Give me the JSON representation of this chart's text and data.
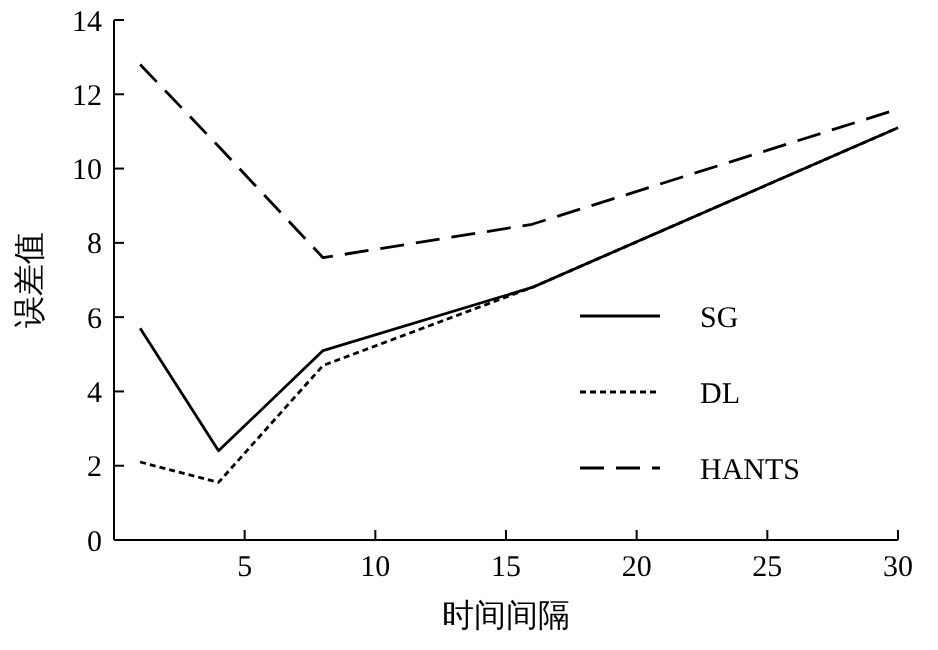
{
  "chart_data": {
    "type": "line",
    "xlabel": "时间间隔",
    "ylabel": "误差值",
    "x": [
      1,
      4,
      8,
      16,
      30
    ],
    "series": [
      {
        "name": "SG",
        "color": "#000000",
        "line_style": "solid",
        "values": [
          5.7,
          2.4,
          5.1,
          6.8,
          11.1
        ]
      },
      {
        "name": "DL",
        "color": "#000000",
        "line_style": "dotted",
        "values": [
          2.1,
          1.55,
          4.7,
          6.8,
          11.1
        ]
      },
      {
        "name": "HANTS",
        "color": "#000000",
        "line_style": "dashed",
        "values": [
          12.8,
          10.6,
          7.6,
          8.5,
          11.6
        ]
      }
    ],
    "xlim": [
      0,
      30
    ],
    "xticks": [
      5,
      10,
      15,
      20,
      25,
      30
    ],
    "ylim": [
      0,
      14
    ],
    "yticks": [
      0,
      2,
      4,
      6,
      8,
      10,
      12,
      14
    ],
    "grid": false,
    "legend": "right",
    "marker": "none"
  }
}
